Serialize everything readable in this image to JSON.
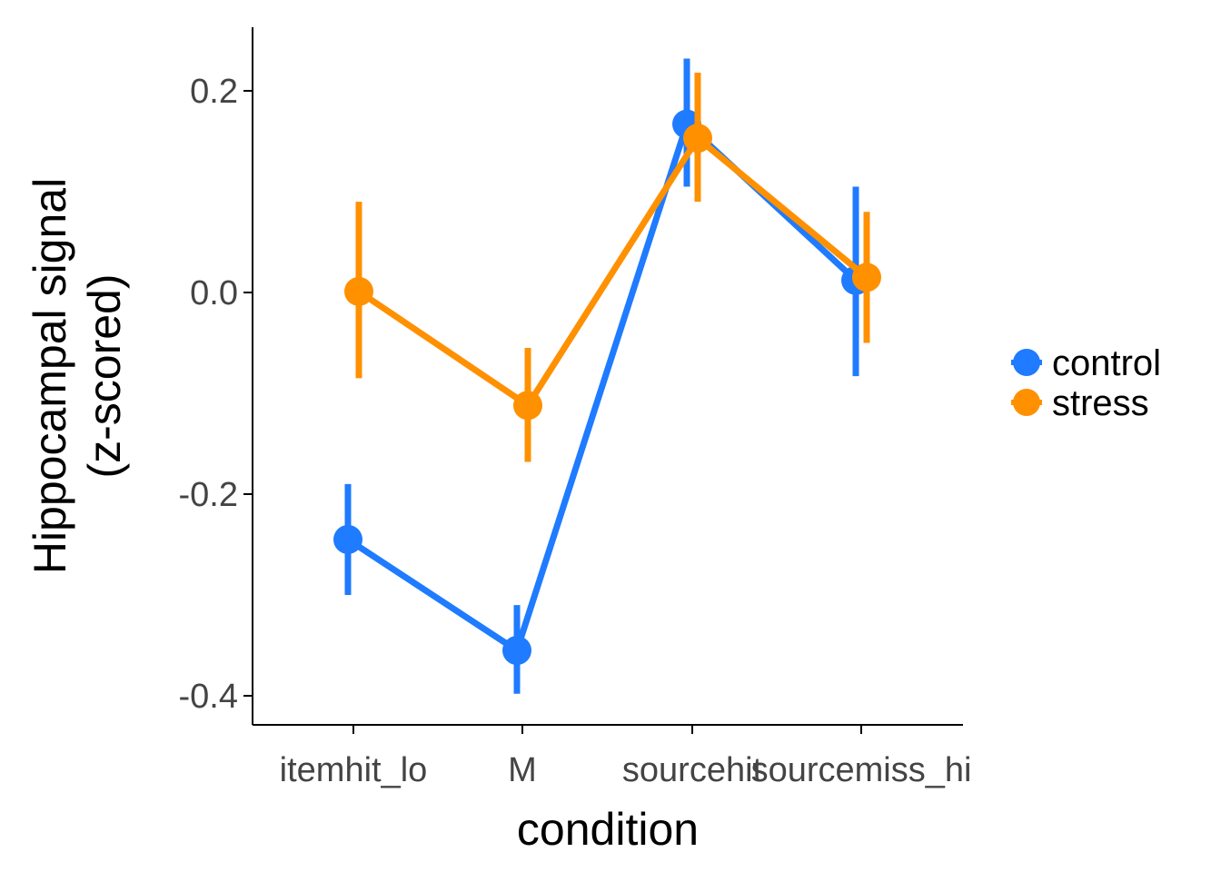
{
  "chart_data": {
    "type": "line",
    "xlabel": "condition",
    "ylabel": [
      "Hippocampal signal",
      "(z-scored)"
    ],
    "categories": [
      "itemhit_lo",
      "M",
      "sourcehit",
      "sourcemiss_hi"
    ],
    "yticks": [
      0.2,
      0.0,
      -0.2,
      -0.4
    ],
    "ytick_labels": [
      "0.2",
      "0.0",
      "-0.2",
      "-0.4"
    ],
    "ylim": [
      -0.43,
      0.26
    ],
    "grid": false,
    "legend_position": "right",
    "series": [
      {
        "name": "control",
        "color": "#1f7bff",
        "values": [
          -0.245,
          -0.355,
          0.167,
          0.012
        ],
        "err_low": [
          -0.3,
          -0.398,
          0.105,
          -0.083
        ],
        "err_high": [
          -0.19,
          -0.31,
          0.232,
          0.105
        ]
      },
      {
        "name": "stress",
        "color": "#ff9000",
        "values": [
          0.001,
          -0.112,
          0.153,
          0.015
        ],
        "err_low": [
          -0.085,
          -0.168,
          0.09,
          -0.05
        ],
        "err_high": [
          0.09,
          -0.055,
          0.218,
          0.08
        ]
      }
    ]
  }
}
